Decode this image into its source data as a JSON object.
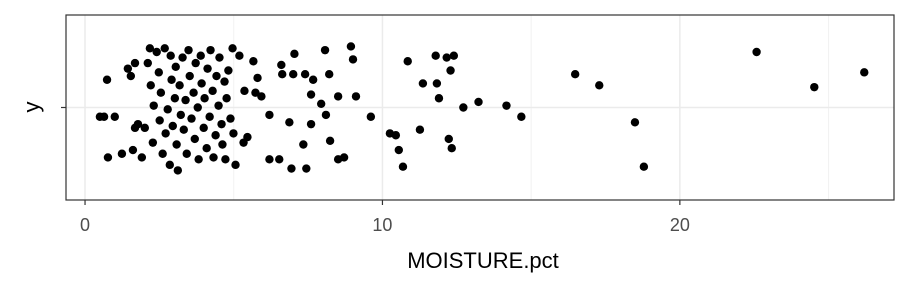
{
  "chart_data": {
    "type": "scatter",
    "x_label": "MOISTURE.pct",
    "y_label": "y",
    "color": "#000000",
    "xlim": [
      -0.64,
      27.2
    ],
    "xticks": [
      0,
      10,
      20
    ],
    "xminorticks": [
      5,
      15,
      25
    ],
    "ylim": [
      0.5,
      1.5
    ],
    "yticks": [
      {
        "value": 1,
        "label": null
      }
    ],
    "grid": true,
    "x": [
      22.58,
      24.52,
      26.2,
      16.48,
      17.29,
      18.49,
      18.79,
      14.67,
      14.17,
      13.23,
      12.72,
      12.4,
      12.16,
      11.79,
      12.29,
      11.9,
      11.83,
      11.36,
      11.26,
      10.85,
      12.23,
      12.33,
      10.69,
      10.55,
      10.45,
      10.25,
      9.61,
      9.11,
      8.94,
      9.01,
      8.51,
      8.71,
      8.51,
      8.24,
      8.07,
      8.21,
      8.1,
      7.94,
      7.67,
      7.6,
      7.6,
      7.4,
      7.44,
      7.34,
      7.04,
      7.0,
      6.94,
      6.87,
      6.63,
      6.6,
      6.53,
      6.2,
      6.2,
      5.93,
      5.8,
      5.73,
      5.66,
      5.46,
      5.36,
      5.33,
      5.19,
      5.06,
      0.5,
      0.64,
      0.74,
      0.77,
      1.0,
      1.24,
      1.44,
      1.54,
      1.61,
      1.68,
      1.68,
      1.78,
      1.91,
      2.01,
      2.11,
      2.18,
      2.21,
      2.28,
      2.31,
      2.41,
      2.48,
      2.51,
      2.55,
      2.61,
      2.68,
      2.71,
      2.78,
      2.85,
      2.88,
      2.91,
      2.95,
      3.02,
      3.05,
      3.08,
      3.12,
      3.18,
      3.22,
      3.28,
      3.32,
      3.38,
      3.42,
      3.48,
      3.52,
      3.58,
      3.65,
      3.69,
      3.72,
      3.79,
      3.82,
      3.89,
      3.92,
      3.99,
      4.02,
      4.09,
      4.12,
      4.19,
      4.22,
      4.29,
      4.32,
      4.39,
      4.42,
      4.49,
      4.52,
      4.59,
      4.62,
      4.69,
      4.76,
      4.82,
      4.89,
      4.96,
      4.99,
      4.72
    ],
    "y": [
      1.3,
      1.11,
      1.19,
      1.18,
      1.12,
      0.92,
      0.68,
      0.95,
      1.01,
      1.03,
      1.0,
      1.28,
      1.27,
      1.28,
      1.2,
      1.05,
      1.13,
      1.13,
      0.88,
      1.25,
      0.83,
      0.78,
      0.68,
      0.77,
      0.85,
      0.86,
      0.95,
      1.06,
      1.33,
      1.26,
      1.06,
      0.73,
      0.72,
      0.82,
      1.31,
      1.18,
      0.96,
      1.02,
      1.15,
      1.07,
      0.91,
      1.18,
      0.67,
      0.8,
      1.29,
      1.18,
      0.67,
      0.92,
      1.18,
      1.23,
      0.72,
      0.96,
      0.72,
      1.06,
      1.16,
      1.08,
      1.25,
      0.84,
      1.09,
      0.81,
      1.28,
      0.69,
      0.95,
      0.95,
      1.15,
      0.73,
      0.95,
      0.75,
      1.21,
      1.17,
      0.77,
      0.89,
      1.24,
      0.91,
      0.73,
      0.89,
      1.24,
      1.32,
      1.12,
      0.81,
      1.01,
      1.3,
      1.19,
      0.93,
      1.08,
      0.75,
      1.32,
      0.86,
      0.99,
      0.69,
      1.28,
      1.15,
      0.9,
      1.05,
      1.22,
      0.8,
      0.66,
      1.12,
      0.96,
      1.27,
      0.88,
      1.04,
      0.75,
      1.31,
      1.17,
      0.94,
      1.08,
      0.83,
      1.24,
      1.0,
      0.72,
      1.28,
      1.13,
      0.89,
      1.05,
      0.78,
      1.21,
      0.95,
      1.31,
      1.09,
      0.73,
      0.85,
      1.17,
      1.01,
      1.27,
      0.91,
      0.8,
      1.14,
      1.05,
      1.2,
      0.94,
      1.32,
      0.86,
      0.72
    ]
  }
}
